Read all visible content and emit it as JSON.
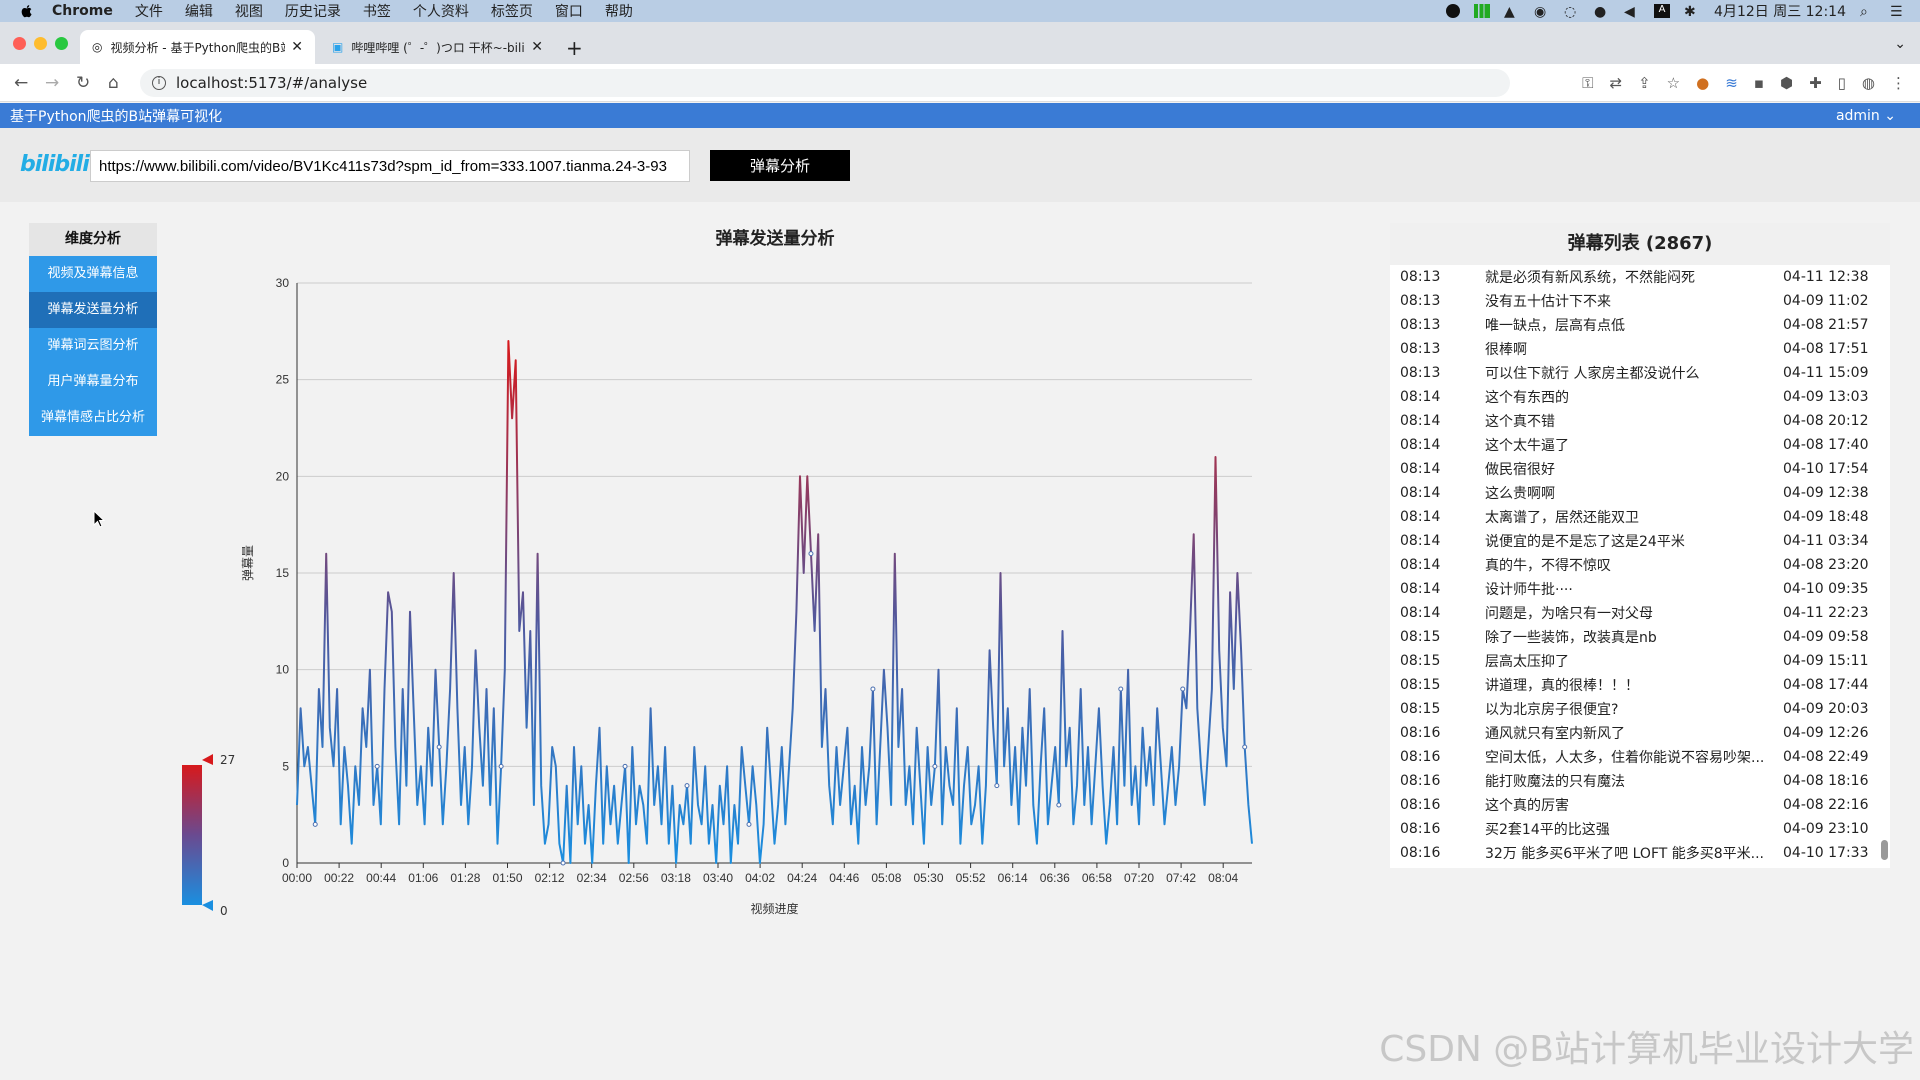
{
  "menubar": {
    "app": "Chrome",
    "items": [
      "文件",
      "编辑",
      "视图",
      "历史记录",
      "书签",
      "个人资料",
      "标签页",
      "窗口",
      "帮助"
    ],
    "clock": "4月12日 周三  12:14"
  },
  "browser": {
    "tabs": [
      {
        "title": "视频分析 - 基于Python爬虫的B站",
        "active": true
      },
      {
        "title": "哔哩哔哩 (゜-゜)つロ 干杯~-bilibili",
        "active": false
      }
    ],
    "url": "localhost:5173/#/analyse"
  },
  "app": {
    "title": "基于Python爬虫的B站弹幕可视化",
    "user": "admin",
    "logo": "bilibili",
    "video_url": "https://www.bilibili.com/video/BV1Kc411s73d?spm_id_from=333.1007.tianma.24-3-93",
    "analyse_button": "弹幕分析"
  },
  "sidebar": {
    "title": "维度分析",
    "items": [
      {
        "label": "视频及弹幕信息"
      },
      {
        "label": "弹幕发送量分析",
        "active": true
      },
      {
        "label": "弹幕词云图分析"
      },
      {
        "label": "用户弹幕量分布"
      },
      {
        "label": "弹幕情感占比分析"
      }
    ]
  },
  "chart_data": {
    "type": "line",
    "title": "弹幕发送量分析",
    "xlabel": "视频进度",
    "ylabel": "弹幕量",
    "ylim": [
      0,
      30
    ],
    "yticks": [
      0,
      5,
      10,
      15,
      20,
      25,
      30
    ],
    "xticks": [
      "00:00",
      "00:22",
      "00:44",
      "01:06",
      "01:28",
      "01:50",
      "02:12",
      "02:34",
      "02:56",
      "03:18",
      "03:40",
      "04:02",
      "04:24",
      "04:46",
      "05:08",
      "05:30",
      "05:52",
      "06:14",
      "06:36",
      "06:58",
      "07:20",
      "07:42",
      "08:04"
    ],
    "visual_map": {
      "min": 0,
      "max": 27,
      "low_color": "#1a8fe0",
      "high_color": "#d7191c"
    },
    "values": [
      3,
      8,
      5,
      6,
      4,
      2,
      9,
      6,
      16,
      7,
      5,
      9,
      2,
      6,
      4,
      1,
      5,
      3,
      8,
      6,
      10,
      3,
      5,
      2,
      9,
      14,
      13,
      6,
      2,
      9,
      4,
      13,
      8,
      3,
      5,
      2,
      7,
      4,
      10,
      6,
      2,
      5,
      9,
      15,
      8,
      3,
      6,
      2,
      5,
      11,
      7,
      4,
      9,
      3,
      8,
      1,
      5,
      10,
      27,
      23,
      26,
      12,
      14,
      7,
      12,
      3,
      16,
      4,
      1,
      2,
      6,
      5,
      1,
      0,
      4,
      0,
      6,
      2,
      5,
      1,
      3,
      0,
      4,
      7,
      1,
      5,
      2,
      4,
      1,
      3,
      5,
      0,
      6,
      2,
      4,
      3,
      1,
      8,
      3,
      5,
      2,
      6,
      1,
      4,
      0,
      3,
      2,
      4,
      1,
      6,
      3,
      2,
      5,
      1,
      3,
      0,
      4,
      2,
      5,
      0,
      3,
      1,
      6,
      4,
      2,
      5,
      3,
      0,
      2,
      7,
      4,
      1,
      3,
      6,
      2,
      5,
      8,
      13,
      20,
      15,
      20,
      16,
      12,
      17,
      6,
      9,
      4,
      2,
      6,
      3,
      5,
      7,
      2,
      4,
      1,
      6,
      3,
      5,
      9,
      2,
      6,
      10,
      7,
      3,
      16,
      6,
      9,
      3,
      5,
      2,
      7,
      4,
      1,
      6,
      3,
      5,
      10,
      2,
      6,
      4,
      3,
      8,
      1,
      4,
      6,
      2,
      3,
      5,
      1,
      4,
      11,
      7,
      4,
      15,
      5,
      8,
      3,
      6,
      2,
      7,
      4,
      9,
      3,
      1,
      5,
      8,
      2,
      4,
      6,
      3,
      12,
      5,
      7,
      2,
      4,
      9,
      3,
      6,
      2,
      5,
      8,
      4,
      1,
      3,
      6,
      2,
      9,
      4,
      10,
      3,
      5,
      2,
      7,
      4,
      6,
      3,
      8,
      5,
      2,
      4,
      6,
      3,
      5,
      9,
      8,
      12,
      17,
      8,
      5,
      3,
      6,
      9,
      21,
      11,
      7,
      5,
      14,
      9,
      15,
      11,
      6,
      3,
      1
    ]
  },
  "danmu_list": {
    "title": "弹幕列表 (2867)",
    "rows": [
      {
        "time": "08:13",
        "content": "就是必须有新风系统，不然能闷死",
        "date": "04-11 12:38"
      },
      {
        "time": "08:13",
        "content": "没有五十估计下不来",
        "date": "04-09 11:02"
      },
      {
        "time": "08:13",
        "content": "唯一缺点，层高有点低",
        "date": "04-08 21:57"
      },
      {
        "time": "08:13",
        "content": "很棒啊",
        "date": "04-08 17:51"
      },
      {
        "time": "08:13",
        "content": "可以住下就行 人家房主都没说什么",
        "date": "04-11 15:09"
      },
      {
        "time": "08:14",
        "content": "这个有东西的",
        "date": "04-09 13:03"
      },
      {
        "time": "08:14",
        "content": "这个真不错",
        "date": "04-08 20:12"
      },
      {
        "time": "08:14",
        "content": "这个太牛逼了",
        "date": "04-08 17:40"
      },
      {
        "time": "08:14",
        "content": "做民宿很好",
        "date": "04-10 17:54"
      },
      {
        "time": "08:14",
        "content": "这么贵啊啊",
        "date": "04-09 12:38"
      },
      {
        "time": "08:14",
        "content": "太离谱了，居然还能双卫",
        "date": "04-09 18:48"
      },
      {
        "time": "08:14",
        "content": "说便宜的是不是忘了这是24平米",
        "date": "04-11 03:34"
      },
      {
        "time": "08:14",
        "content": "真的牛，不得不惊叹",
        "date": "04-08 23:20"
      },
      {
        "time": "08:14",
        "content": "设计师牛批····",
        "date": "04-10 09:35"
      },
      {
        "time": "08:14",
        "content": "问题是，为啥只有一对父母",
        "date": "04-11 22:23"
      },
      {
        "time": "08:15",
        "content": "除了一些装饰，改装真是nb",
        "date": "04-09 09:58"
      },
      {
        "time": "08:15",
        "content": "层高太压抑了",
        "date": "04-09 15:11"
      },
      {
        "time": "08:15",
        "content": "讲道理，真的很棒！！！",
        "date": "04-08 17:44"
      },
      {
        "time": "08:15",
        "content": "以为北京房子很便宜?",
        "date": "04-09 20:03"
      },
      {
        "time": "08:16",
        "content": "通风就只有室内新风了",
        "date": "04-09 12:26"
      },
      {
        "time": "08:16",
        "content": "空间太低，人太多，住着你能说不容易吵架...",
        "date": "04-08 22:49"
      },
      {
        "time": "08:16",
        "content": "能打败魔法的只有魔法",
        "date": "04-08 18:16"
      },
      {
        "time": "08:16",
        "content": "这个真的厉害",
        "date": "04-08 22:16"
      },
      {
        "time": "08:16",
        "content": "买2套14平的比这强",
        "date": "04-09 23:10"
      },
      {
        "time": "08:16",
        "content": "32万 能多买6平米了吧 LOFT 能多买8平米...",
        "date": "04-10 17:33"
      }
    ]
  },
  "watermark": "CSDN @B站计算机毕业设计大学"
}
